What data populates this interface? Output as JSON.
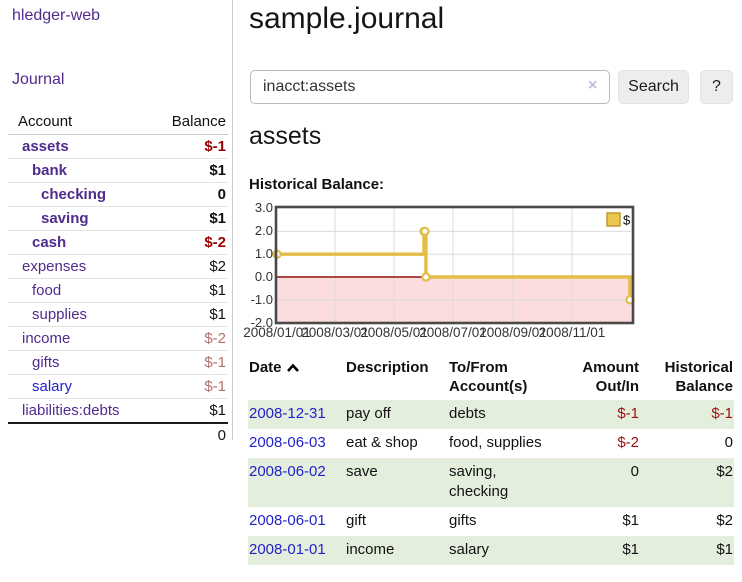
{
  "app": {
    "brand": "hledger-web"
  },
  "sidebar": {
    "journal_link": "Journal",
    "accounts": {
      "header_account": "Account",
      "header_balance": "Balance",
      "rows": [
        {
          "name": "assets",
          "balance": "$-1"
        },
        {
          "name": "bank",
          "balance": "$1"
        },
        {
          "name": "checking",
          "balance": "0"
        },
        {
          "name": "saving",
          "balance": "$1"
        },
        {
          "name": "cash",
          "balance": "$-2"
        },
        {
          "name": "expenses",
          "balance": "$2"
        },
        {
          "name": "food",
          "balance": "$1"
        },
        {
          "name": "supplies",
          "balance": "$1"
        },
        {
          "name": "income",
          "balance": "$-2"
        },
        {
          "name": "gifts",
          "balance": "$-1"
        },
        {
          "name": "salary",
          "balance": "$-1"
        },
        {
          "name": "liabilities:debts",
          "balance": "$1"
        }
      ],
      "total": "0"
    }
  },
  "main": {
    "title": "sample.journal",
    "search": {
      "value": "inacct:assets",
      "clear_label": "×",
      "button_label": "Search",
      "help_label": "?"
    },
    "account_heading": "assets",
    "section_label": "Historical Balance:"
  },
  "chart_data": {
    "type": "line",
    "title": "Historical Balance",
    "legend": [
      {
        "label": "$",
        "color": "#e9c64d"
      }
    ],
    "x_ticks": [
      "2008/01/01",
      "2008/03/01",
      "2008/05/01",
      "2008/07/01",
      "2008/09/01",
      "2008/11/01"
    ],
    "y_ticks": [
      "3.0",
      "2.0",
      "1.0",
      "0.0",
      "-1.0",
      "-2.0"
    ],
    "ylim": [
      -2,
      3
    ],
    "xrange": [
      "2008-01-01",
      "2008-12-31"
    ],
    "grid": true,
    "legend_position": "top-right",
    "series": [
      {
        "name": "$",
        "points": [
          {
            "date": "2008-01-01",
            "value": 1
          },
          {
            "date": "2008-06-01",
            "value": 2
          },
          {
            "date": "2008-06-02",
            "value": 2
          },
          {
            "date": "2008-06-03",
            "value": 0
          },
          {
            "date": "2008-12-31",
            "value": -1
          }
        ]
      }
    ],
    "line_color": "#e3bd45",
    "marker_fill": "#ffffff",
    "negative_region_color": "#fcdddd",
    "zero_line_color": "#8f1010"
  },
  "register": {
    "headers": {
      "date": "Date",
      "description": "Description",
      "accounts": "To/From Account(s)",
      "amount": "Amount Out/In",
      "balance": "Historical Balance"
    },
    "rows": [
      {
        "date": "2008-12-31",
        "description": "pay off",
        "accounts": "debts",
        "amount": "$-1",
        "balance": "$-1"
      },
      {
        "date": "2008-06-03",
        "description": "eat & shop",
        "accounts": "food, supplies",
        "amount": "$-2",
        "balance": "0"
      },
      {
        "date": "2008-06-02",
        "description": "save",
        "accounts": "saving, checking",
        "amount": "0",
        "balance": "$2"
      },
      {
        "date": "2008-06-01",
        "description": "gift",
        "accounts": "gifts",
        "amount": "$1",
        "balance": "$2"
      },
      {
        "date": "2008-01-01",
        "description": "income",
        "accounts": "salary",
        "amount": "$1",
        "balance": "$1"
      }
    ]
  }
}
